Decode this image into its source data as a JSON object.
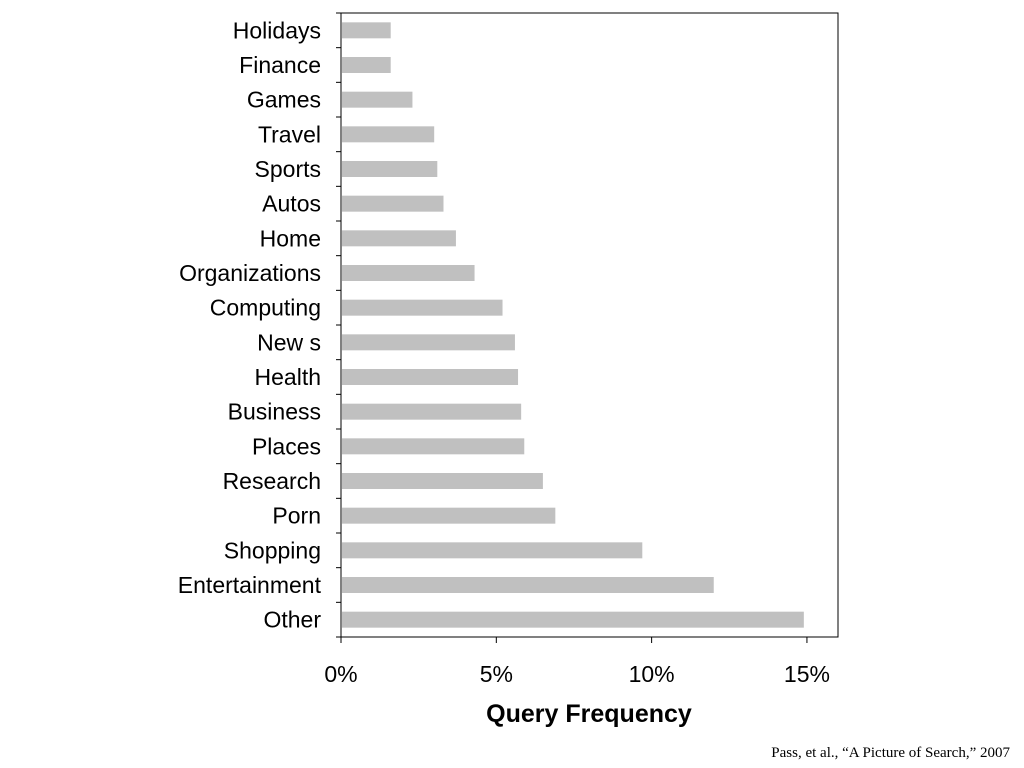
{
  "chart_data": {
    "type": "bar",
    "orientation": "horizontal",
    "categories": [
      "Holidays",
      "Finance",
      "Games",
      "Travel",
      "Sports",
      "Autos",
      "Home",
      "Organizations",
      "Computing",
      "New s",
      "Health",
      "Business",
      "Places",
      "Research",
      "Porn",
      "Shopping",
      "Entertainment",
      "Other"
    ],
    "values": [
      1.6,
      1.6,
      2.3,
      3.0,
      3.1,
      3.3,
      3.7,
      4.3,
      5.2,
      5.6,
      5.7,
      5.8,
      5.9,
      6.5,
      6.9,
      9.7,
      12.0,
      14.9
    ],
    "xlabel": "Query Frequency",
    "ylabel": "",
    "xlim": [
      0,
      16
    ],
    "ticks": [
      0,
      5,
      10,
      15
    ],
    "tick_labels": [
      "0%",
      "5%",
      "10%",
      "15%"
    ],
    "bar_color": "#c0c0c0",
    "grid": false,
    "legend": "none"
  },
  "citation": "Pass, et al., “A Picture of Search,” 2007"
}
